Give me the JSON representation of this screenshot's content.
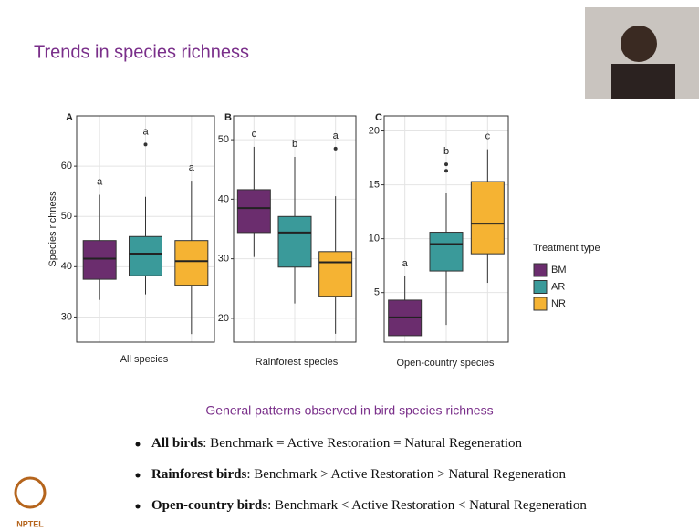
{
  "slide": {
    "title": "Trends in species richness",
    "subtitle": "General patterns observed in bird species richness",
    "bullets": [
      {
        "bold": "All birds",
        "text": ": Benchmark = Active Restoration = Natural Regeneration"
      },
      {
        "bold": "Rainforest birds",
        "text": ": Benchmark > Active Restoration > Natural Regeneration"
      },
      {
        "bold": "Open-country birds",
        "text": ": Benchmark < Active Restoration < Natural Regeneration"
      }
    ],
    "logo": "NPTEL"
  },
  "chart_data": [
    {
      "type": "box",
      "panel": "A",
      "xlabel": "All species",
      "ylabel": "Species richness",
      "ylim": [
        25,
        70
      ],
      "yticks": [
        30,
        40,
        50,
        60
      ],
      "grid": true,
      "boxes": [
        {
          "name": "BM",
          "color": "#6b2d6e",
          "low": 33.4,
          "q1": 37.5,
          "median": 41.6,
          "q3": 45.2,
          "high": 54.3,
          "outliers": [],
          "letter": "a"
        },
        {
          "name": "AR",
          "color": "#3a9a9a",
          "low": 34.5,
          "q1": 38.2,
          "median": 42.6,
          "q3": 46,
          "high": 53.9,
          "outliers": [
            64.3
          ],
          "letter": "a"
        },
        {
          "name": "NR",
          "color": "#f5b333",
          "low": 26.6,
          "q1": 36.3,
          "median": 41.1,
          "q3": 45.2,
          "high": 57.1,
          "outliers": [],
          "letter": "a"
        }
      ]
    },
    {
      "type": "box",
      "panel": "B",
      "xlabel": "Rainforest species",
      "ylim": [
        16,
        54
      ],
      "yticks": [
        20,
        30,
        40,
        50
      ],
      "grid": true,
      "boxes": [
        {
          "name": "BM",
          "color": "#6b2d6e",
          "low": 30.3,
          "q1": 34.4,
          "median": 38.5,
          "q3": 41.6,
          "high": 48.8,
          "outliers": [],
          "letter": "c"
        },
        {
          "name": "AR",
          "color": "#3a9a9a",
          "low": 22.5,
          "q1": 28.6,
          "median": 34.4,
          "q3": 37.1,
          "high": 47.1,
          "outliers": [],
          "letter": "b"
        },
        {
          "name": "NR",
          "color": "#f5b333",
          "low": 17.4,
          "q1": 23.7,
          "median": 29.4,
          "q3": 31.2,
          "high": 40.5,
          "outliers": [
            48.5
          ],
          "letter": "a"
        }
      ]
    },
    {
      "type": "box",
      "panel": "C",
      "xlabel": "Open-country species",
      "legend_title": "Treatment type",
      "ylim": [
        0.4,
        21.4
      ],
      "yticks": [
        5,
        10,
        15,
        20
      ],
      "grid": true,
      "boxes": [
        {
          "name": "BM",
          "color": "#6b2d6e",
          "low": 1.0,
          "q1": 1.0,
          "median": 2.7,
          "q3": 4.3,
          "high": 6.5,
          "outliers": [],
          "letter": "a"
        },
        {
          "name": "AR",
          "color": "#3a9a9a",
          "low": 2.0,
          "q1": 7.0,
          "median": 9.5,
          "q3": 10.6,
          "high": 14.2,
          "outliers": [
            16.9,
            16.3
          ],
          "letter": "b"
        },
        {
          "name": "NR",
          "color": "#f5b333",
          "low": 5.9,
          "q1": 8.6,
          "median": 11.4,
          "q3": 15.3,
          "high": 18.3,
          "outliers": [],
          "letter": "c"
        }
      ]
    }
  ]
}
